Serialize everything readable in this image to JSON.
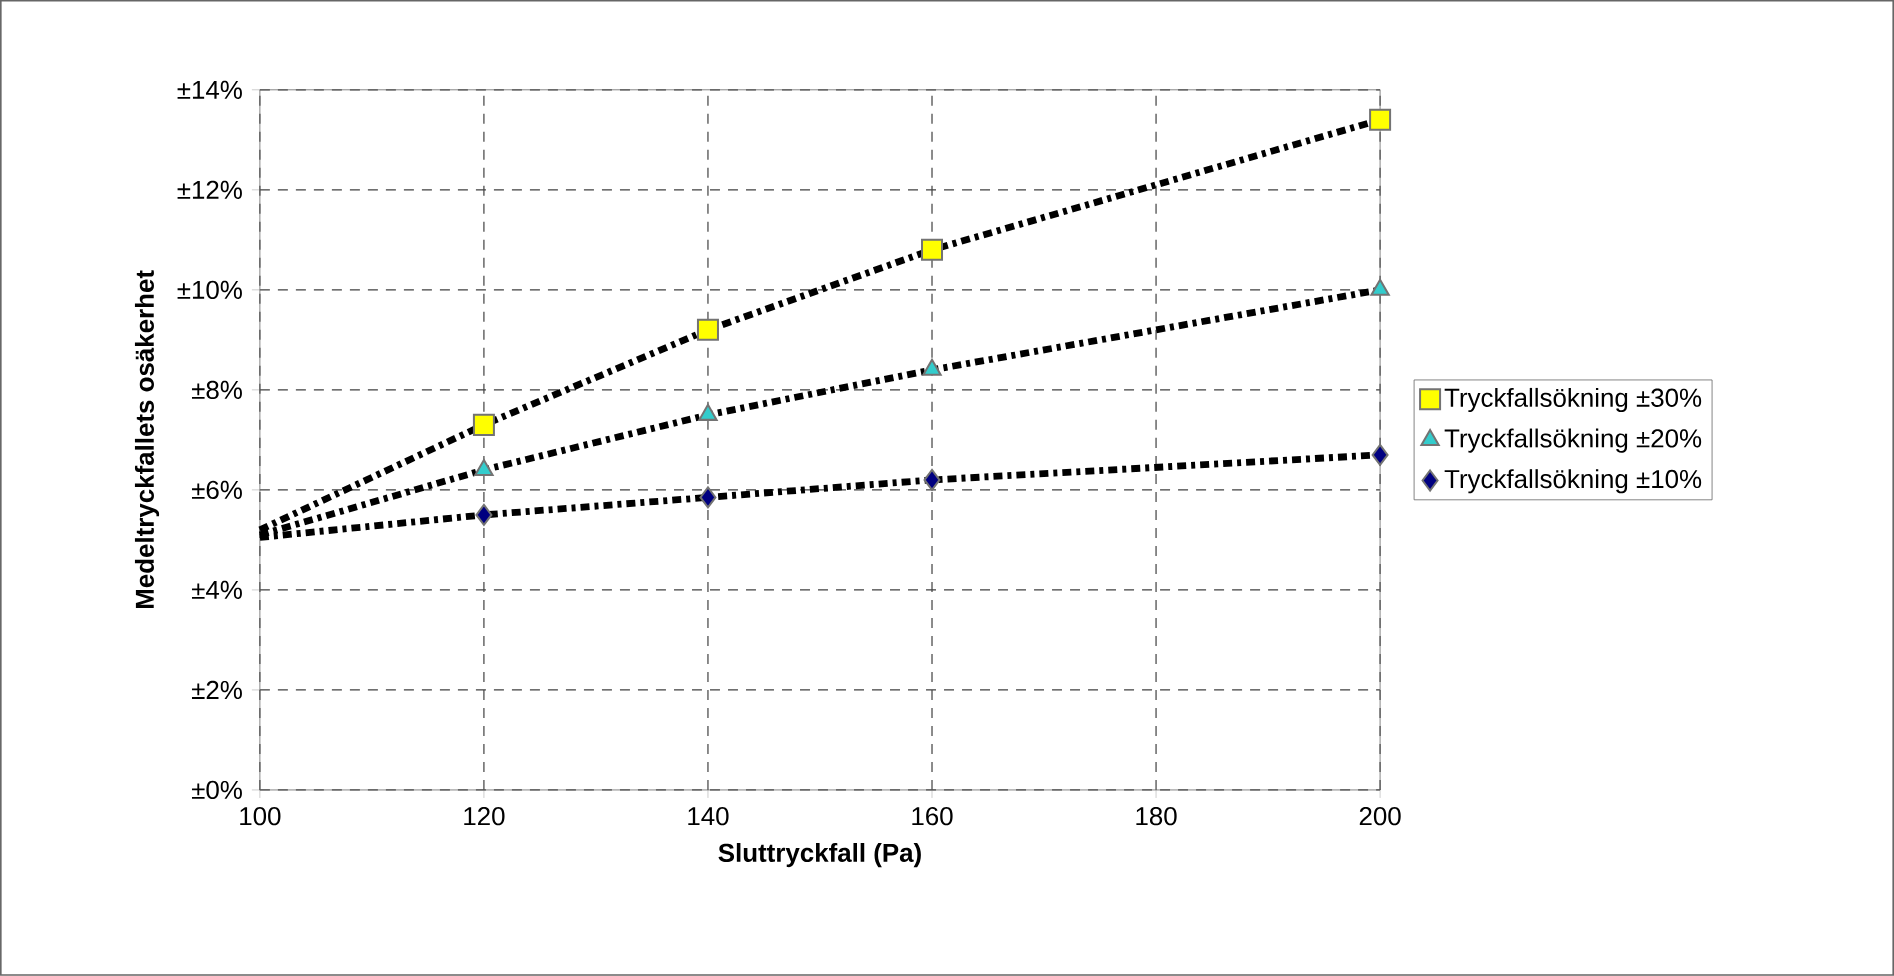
{
  "chart_data": {
    "type": "scatter",
    "xlabel": "Sluttryckfall (Pa)",
    "ylabel": "Medeltryckfallets osäkerhet",
    "xlim": [
      100,
      200
    ],
    "xticks": [
      100,
      120,
      140,
      160,
      180,
      200
    ],
    "ylim": [
      0,
      14
    ],
    "yticks": [
      {
        "value": 0,
        "label": "±0%"
      },
      {
        "value": 2,
        "label": "±2%"
      },
      {
        "value": 4,
        "label": "±4%"
      },
      {
        "value": 6,
        "label": "±6%"
      },
      {
        "value": 8,
        "label": "±8%"
      },
      {
        "value": 10,
        "label": "±10%"
      },
      {
        "value": 12,
        "label": "±12%"
      },
      {
        "value": 14,
        "label": "±14%"
      }
    ],
    "grid": true,
    "legend": "right",
    "series": [
      {
        "name": "Tryckfallsökning ±30%",
        "color": "#ffff00",
        "marker": "square",
        "x": [
          120,
          140,
          160,
          200
        ],
        "values": [
          7.3,
          9.2,
          10.8,
          13.4
        ]
      },
      {
        "name": "Tryckfallsökning ±20%",
        "color": "#33cccc",
        "marker": "triangle",
        "x": [
          120,
          140,
          160,
          200
        ],
        "values": [
          6.4,
          7.5,
          8.4,
          10.0
        ]
      },
      {
        "name": "Tryckfallsökning ±10%",
        "color": "#000080",
        "marker": "diamond",
        "x": [
          120,
          140,
          160,
          200
        ],
        "values": [
          5.5,
          5.85,
          6.2,
          6.7
        ]
      },
      {
        "type": "line",
        "color": "#000000",
        "line_style": "dashed",
        "marker": "none",
        "x": [
          100,
          120,
          140,
          160,
          200
        ],
        "values": [
          5.2,
          7.3,
          9.2,
          10.8,
          13.4
        ]
      },
      {
        "type": "line",
        "color": "#000000",
        "line_style": "dashed",
        "marker": "none",
        "x": [
          100,
          120,
          140,
          160,
          200
        ],
        "values": [
          5.1,
          6.4,
          7.5,
          8.4,
          10.0
        ]
      },
      {
        "type": "line",
        "color": "#000000",
        "line_style": "dashed",
        "marker": "none",
        "x": [
          100,
          120,
          140,
          160,
          200
        ],
        "values": [
          5.05,
          5.5,
          5.85,
          6.2,
          6.7
        ]
      }
    ]
  }
}
